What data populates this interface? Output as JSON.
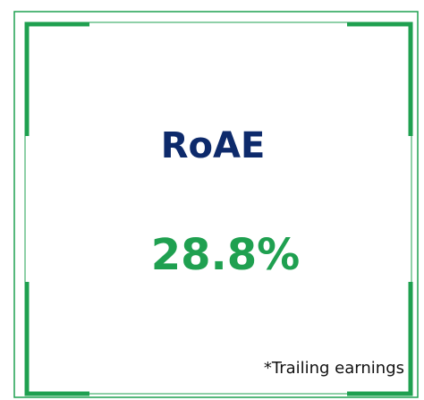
{
  "card": {
    "title": "RoAE",
    "value": "28.8%",
    "footnote": "*Trailing earnings"
  }
}
